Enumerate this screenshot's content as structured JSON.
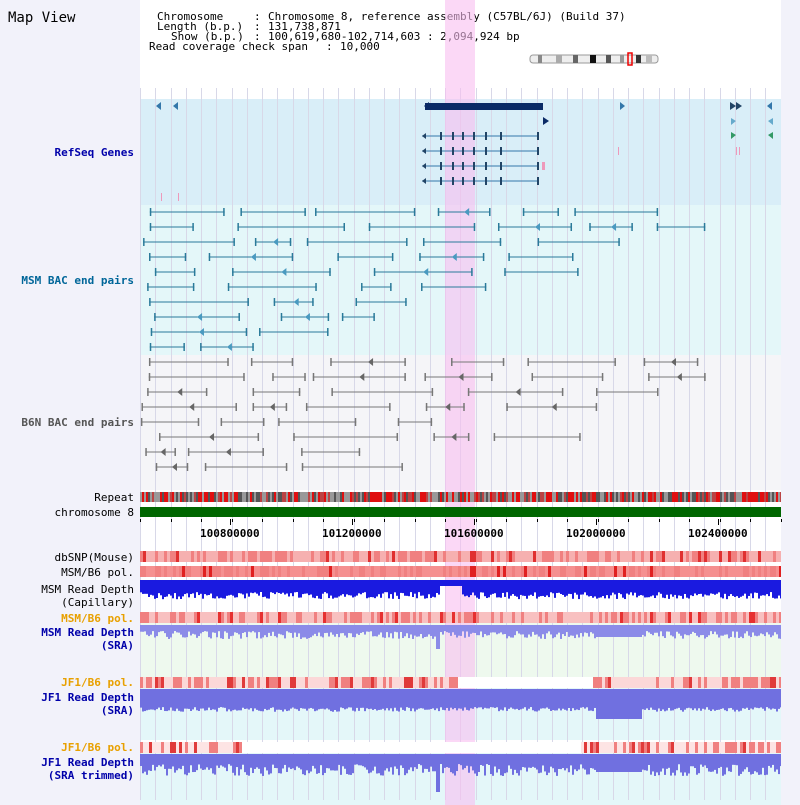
{
  "title": "Map View",
  "info": {
    "chromosome_key": "Chromosome",
    "chromosome_value": "Chromosome 8, reference assembly (C57BL/6J) (Build 37)",
    "length_key": "Length (b.p.)",
    "length_value": "131,738,871",
    "show_key": "Show (b.p.)",
    "show_value": "100,619,680-102,714,603 : 2,094,924 bp",
    "span_key": "Read coverage check span",
    "span_value": "10,000"
  },
  "tracks": {
    "refseq": "RefSeq Genes",
    "msm_bac": "MSM BAC end pairs",
    "b6n_bac": "B6N BAC end pairs",
    "repeat": "Repeat",
    "chromosome": "chromosome 8",
    "dbsnp": "dbSNP(Mouse)",
    "msm_b6_pol_1": "MSM/B6 pol.",
    "msm_read_depth_cap_1": "MSM Read Depth",
    "msm_read_depth_cap_2": "(Capillary)",
    "msm_b6_pol_2": "MSM/B6 pol.",
    "msm_read_depth_sra_1": "MSM Read Depth",
    "msm_read_depth_sra_2": "(SRA)",
    "jf1_b6_pol_1": "JF1/B6 pol.",
    "jf1_read_depth_sra_1": "JF1 Read Depth",
    "jf1_read_depth_sra_2": "(SRA)",
    "jf1_b6_pol_2": "JF1/B6 pol.",
    "jf1_read_depth_trim_1": "JF1 Read Depth",
    "jf1_read_depth_trim_2": "(SRA trimmed)"
  },
  "axis": {
    "ticks": [
      "100800000",
      "101200000",
      "101600000",
      "102000000",
      "102400000"
    ]
  },
  "colors": {
    "refseq_bg": "#d9eef8",
    "msm_bg": "#e4f7f9",
    "b6n_bg": "#f3f3f8",
    "refseq_label": "#0000aa",
    "msm_label": "#006699",
    "b6n_label": "#555555",
    "pol_label": "#e8a000",
    "depth_label": "#0000aa",
    "highlight": "#f8c8f0",
    "chromosome_bar": "#006600"
  }
}
